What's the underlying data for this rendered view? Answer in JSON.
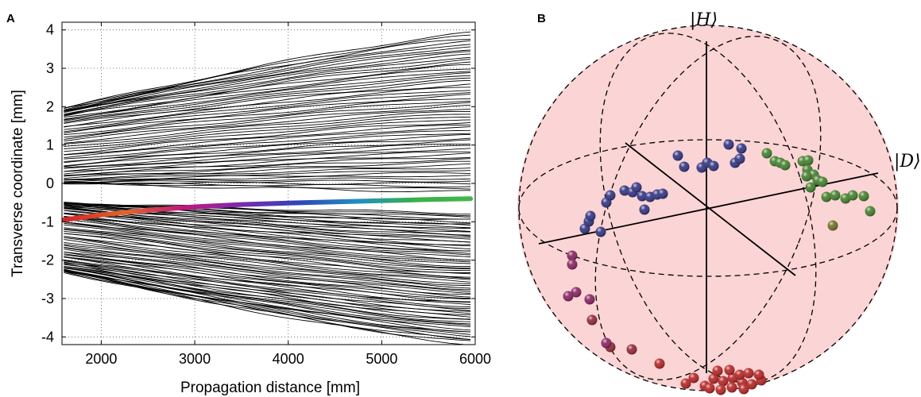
{
  "figure": {
    "panel_a_label": "A",
    "panel_b_label": "B"
  },
  "chart_data": [
    {
      "type": "line",
      "panel": "A",
      "xlabel": "Propagation distance [mm]",
      "ylabel": "Transverse coordinate [mm]",
      "xlim": [
        1580,
        6000
      ],
      "ylim": [
        -4.2,
        4.2
      ],
      "x_ticks": [
        2000,
        3000,
        4000,
        5000,
        6000
      ],
      "y_ticks": [
        4,
        3,
        2,
        1,
        0,
        -1,
        -2,
        -3,
        -4
      ],
      "grid": true,
      "line_color": "#000000",
      "trajectory_groups": [
        {
          "name": "upper lobe",
          "count": 60,
          "start_range": [
            0.0,
            1.95
          ],
          "start_center": 0.9,
          "end_range": [
            -0.25,
            3.95
          ],
          "end_center": 1.3
        },
        {
          "name": "lower lobe",
          "count": 75,
          "start_range": [
            -2.3,
            -0.5
          ],
          "start_center": -1.45,
          "end_range": [
            -4.2,
            -0.75
          ],
          "end_center": -2.0
        }
      ],
      "highlighted_trajectory": {
        "x": [
          1600,
          2000,
          2500,
          3000,
          3500,
          4000,
          4500,
          5000,
          5500,
          5950
        ],
        "y": [
          -0.95,
          -0.82,
          -0.7,
          -0.61,
          -0.55,
          -0.51,
          -0.48,
          -0.45,
          -0.42,
          -0.4
        ],
        "color_stops": [
          "#d62728",
          "#e0662a",
          "#c2187e",
          "#7a2bb0",
          "#2f45b8",
          "#1f8fbf",
          "#3ab049",
          "#44b64a"
        ]
      }
    },
    {
      "type": "scatter",
      "panel": "B",
      "sphere_color": "#fbd4d5",
      "axis_labels": {
        "h": "|H⟩",
        "d": "|D⟩"
      },
      "point_groups": [
        {
          "name": "red",
          "color": "#b3201e",
          "count": 19
        },
        {
          "name": "dark-red",
          "color": "#8e2330",
          "count": 3
        },
        {
          "name": "magenta",
          "color": "#861f5e",
          "count": 6
        },
        {
          "name": "indigo",
          "color": "#2d2f7e",
          "count": 23
        },
        {
          "name": "green",
          "color": "#3f7d28",
          "count": 17
        },
        {
          "name": "olive",
          "color": "#6f6e22",
          "count": 1
        }
      ]
    }
  ]
}
